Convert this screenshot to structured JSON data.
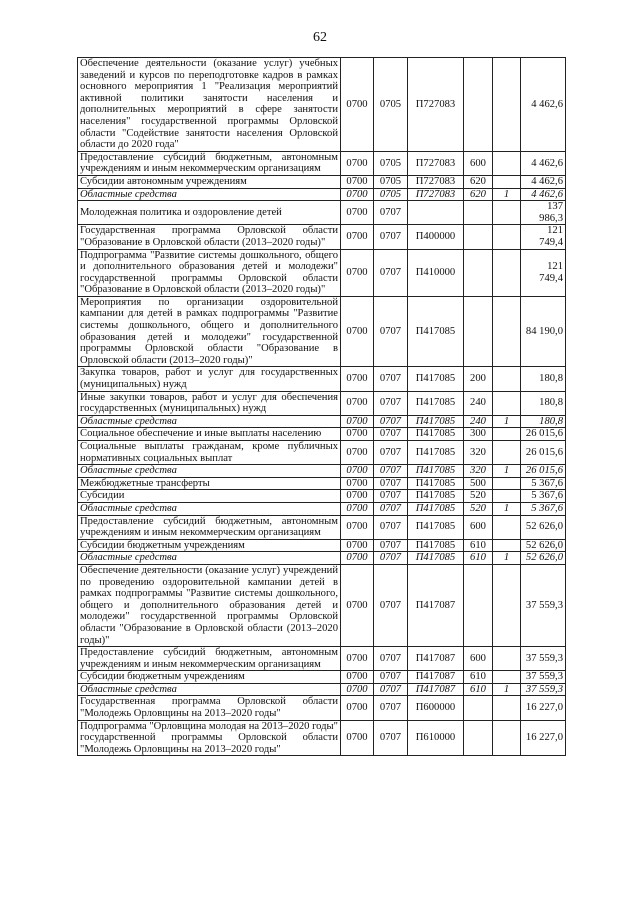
{
  "page_number": "62",
  "rows": [
    {
      "desc": "Обеспечение деятельности (оказание услуг) учебных заведений и курсов по переподготовке кадров в рамках основного мероприятия 1 \"Реализация мероприятий активной политики занятости населения и дополнительных мероприятий в сфере занятости населения\" государственной программы Орловской области \"Содействие занятости населения Орловской области до 2020 года\"",
      "rz": "0700",
      "pr": "0705",
      "csr": "П727083",
      "vr": "",
      "src": "",
      "amount": "4 462,6",
      "italic": false
    },
    {
      "desc": "Предоставление субсидий бюджетным, автономным учреждениям и иным некоммерческим организациям",
      "rz": "0700",
      "pr": "0705",
      "csr": "П727083",
      "vr": "600",
      "src": "",
      "amount": "4 462,6",
      "italic": false
    },
    {
      "desc": "Субсидии автономным учреждениям",
      "rz": "0700",
      "pr": "0705",
      "csr": "П727083",
      "vr": "620",
      "src": "",
      "amount": "4 462,6",
      "italic": false
    },
    {
      "desc": "Областные средства",
      "rz": "0700",
      "pr": "0705",
      "csr": "П727083",
      "vr": "620",
      "src": "1",
      "amount": "4 462,6",
      "italic": true
    },
    {
      "desc": "Молодежная политика и оздоровление детей",
      "rz": "0700",
      "pr": "0707",
      "csr": "",
      "vr": "",
      "src": "",
      "amount": "137 986,3",
      "italic": false
    },
    {
      "desc": "Государственная программа Орловской области \"Образование в Орловской области (2013–2020 годы)\"",
      "rz": "0700",
      "pr": "0707",
      "csr": "П400000",
      "vr": "",
      "src": "",
      "amount": "121 749,4",
      "italic": false
    },
    {
      "desc": "Подпрограмма \"Развитие системы дошкольного, общего и дополнительного образования детей и молодежи\" государственной программы Орловской области \"Образование в Орловской области (2013–2020 годы)\"",
      "rz": "0700",
      "pr": "0707",
      "csr": "П410000",
      "vr": "",
      "src": "",
      "amount": "121 749,4",
      "italic": false
    },
    {
      "desc": "Мероприятия по организации оздоровительной кампании для детей в рамках подпрограммы \"Развитие системы дошкольного, общего и дополнительного образования детей и молодежи\" государственной программы Орловской области \"Образование в Орловской области (2013–2020 годы)\"",
      "rz": "0700",
      "pr": "0707",
      "csr": "П417085",
      "vr": "",
      "src": "",
      "amount": "84 190,0",
      "italic": false
    },
    {
      "desc": "Закупка товаров, работ и услуг для государственных (муниципальных) нужд",
      "rz": "0700",
      "pr": "0707",
      "csr": "П417085",
      "vr": "200",
      "src": "",
      "amount": "180,8",
      "italic": false
    },
    {
      "desc": "Иные закупки товаров, работ и услуг для обеспечения государственных (муниципальных) нужд",
      "rz": "0700",
      "pr": "0707",
      "csr": "П417085",
      "vr": "240",
      "src": "",
      "amount": "180,8",
      "italic": false
    },
    {
      "desc": "Областные средства",
      "rz": "0700",
      "pr": "0707",
      "csr": "П417085",
      "vr": "240",
      "src": "1",
      "amount": "180,8",
      "italic": true
    },
    {
      "desc": "Социальное обеспечение и иные выплаты населению",
      "rz": "0700",
      "pr": "0707",
      "csr": "П417085",
      "vr": "300",
      "src": "",
      "amount": "26 015,6",
      "italic": false
    },
    {
      "desc": "Социальные выплаты гражданам, кроме публичных нормативных социальных выплат",
      "rz": "0700",
      "pr": "0707",
      "csr": "П417085",
      "vr": "320",
      "src": "",
      "amount": "26 015,6",
      "italic": false
    },
    {
      "desc": "Областные средства",
      "rz": "0700",
      "pr": "0707",
      "csr": "П417085",
      "vr": "320",
      "src": "1",
      "amount": "26 015,6",
      "italic": true
    },
    {
      "desc": "Межбюджетные трансферты",
      "rz": "0700",
      "pr": "0707",
      "csr": "П417085",
      "vr": "500",
      "src": "",
      "amount": "5 367,6",
      "italic": false
    },
    {
      "desc": "Субсидии",
      "rz": "0700",
      "pr": "0707",
      "csr": "П417085",
      "vr": "520",
      "src": "",
      "amount": "5 367,6",
      "italic": false
    },
    {
      "desc": "Областные средства",
      "rz": "0700",
      "pr": "0707",
      "csr": "П417085",
      "vr": "520",
      "src": "1",
      "amount": "5 367,6",
      "italic": true
    },
    {
      "desc": "Предоставление субсидий бюджетным, автономным учреждениям и иным некоммерческим организациям",
      "rz": "0700",
      "pr": "0707",
      "csr": "П417085",
      "vr": "600",
      "src": "",
      "amount": "52 626,0",
      "italic": false
    },
    {
      "desc": "Субсидии бюджетным учреждениям",
      "rz": "0700",
      "pr": "0707",
      "csr": "П417085",
      "vr": "610",
      "src": "",
      "amount": "52 626,0",
      "italic": false
    },
    {
      "desc": "Областные средства",
      "rz": "0700",
      "pr": "0707",
      "csr": "П417085",
      "vr": "610",
      "src": "1",
      "amount": "52 626,0",
      "italic": true
    },
    {
      "desc": "Обеспечение деятельности (оказание услуг) учреждений по проведению оздоровительной кампании детей в рамках подпрограммы \"Развитие системы дошкольного, общего и дополнительного образования детей и молодежи\" государственной программы Орловской области \"Образование в Орловской области (2013–2020 годы)\"",
      "rz": "0700",
      "pr": "0707",
      "csr": "П417087",
      "vr": "",
      "src": "",
      "amount": "37 559,3",
      "italic": false
    },
    {
      "desc": "Предоставление субсидий бюджетным, автономным учреждениям и иным некоммерческим организациям",
      "rz": "0700",
      "pr": "0707",
      "csr": "П417087",
      "vr": "600",
      "src": "",
      "amount": "37 559,3",
      "italic": false
    },
    {
      "desc": "Субсидии бюджетным учреждениям",
      "rz": "0700",
      "pr": "0707",
      "csr": "П417087",
      "vr": "610",
      "src": "",
      "amount": "37 559,3",
      "italic": false
    },
    {
      "desc": "Областные средства",
      "rz": "0700",
      "pr": "0707",
      "csr": "П417087",
      "vr": "610",
      "src": "1",
      "amount": "37 559,3",
      "italic": true
    },
    {
      "desc": "Государственная программа Орловской области \"Молодежь Орловщины на 2013–2020 годы\"",
      "rz": "0700",
      "pr": "0707",
      "csr": "П600000",
      "vr": "",
      "src": "",
      "amount": "16 227,0",
      "italic": false
    },
    {
      "desc": "Подпрограмма \"Орловщина молодая на 2013–2020 годы\" государственной программы Орловской области \"Молодежь Орловщины на 2013–2020 годы\"",
      "rz": "0700",
      "pr": "0707",
      "csr": "П610000",
      "vr": "",
      "src": "",
      "amount": "16 227,0",
      "italic": false
    }
  ]
}
